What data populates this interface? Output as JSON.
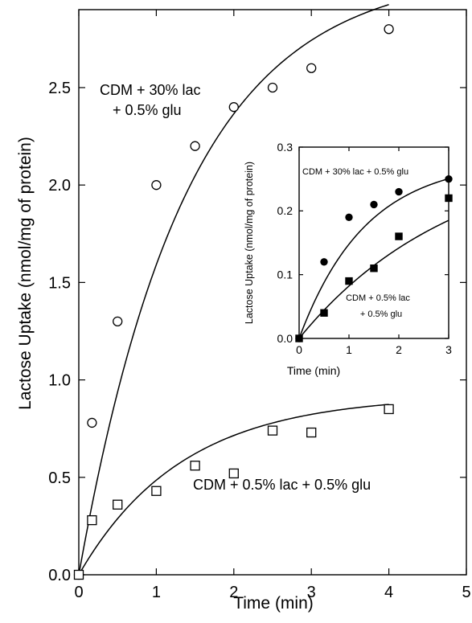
{
  "chart_data": [
    {
      "type": "scatter",
      "title": "",
      "xlabel": "Time (min)",
      "ylabel": "Lactose Uptake (nmol/mg of protein)",
      "xlim": [
        0,
        5
      ],
      "ylim": [
        0,
        2.9
      ],
      "xticks": [
        0,
        1,
        2,
        3,
        4,
        5
      ],
      "xtick_labels": [
        "0",
        "1",
        "2",
        "3",
        "4",
        "5"
      ],
      "yticks": [
        0,
        0.5,
        1.0,
        1.5,
        2.0,
        2.5
      ],
      "ytick_labels": [
        "0.0",
        "0.5",
        "1.0",
        "1.5",
        "2.0",
        "2.5"
      ],
      "grid": false,
      "series": [
        {
          "name": "CDM + 30% lac + 0.5% glu",
          "marker": "open-circle",
          "x": [
            0,
            0.17,
            0.5,
            1,
            1.5,
            2,
            2.5,
            3,
            4
          ],
          "y": [
            0,
            0.78,
            1.3,
            2.0,
            2.2,
            2.4,
            2.5,
            2.6,
            2.8
          ],
          "fit": {
            "ymax": 3.1,
            "k": 0.72,
            "xmax": 4
          }
        },
        {
          "name": "CDM + 0.5% lac + 0.5% glu",
          "marker": "open-square",
          "x": [
            0,
            0.17,
            0.5,
            1,
            1.5,
            2,
            2.5,
            3,
            4
          ],
          "y": [
            0,
            0.28,
            0.36,
            0.43,
            0.56,
            0.52,
            0.74,
            0.73,
            0.85
          ],
          "fit": {
            "ymax": 0.92,
            "k": 0.75,
            "xmax": 4
          }
        }
      ]
    },
    {
      "type": "scatter",
      "title": "",
      "xlabel": "Time (min)",
      "ylabel": "Lactose Uptake (nmol/mg of protein)",
      "xlim": [
        0,
        3
      ],
      "ylim": [
        0,
        0.3
      ],
      "xticks": [
        0,
        1,
        2,
        3
      ],
      "xtick_labels": [
        "0",
        "1",
        "2",
        "3"
      ],
      "yticks": [
        0,
        0.1,
        0.2,
        0.3
      ],
      "ytick_labels": [
        "0.0",
        "0.1",
        "0.2",
        "0.3"
      ],
      "grid": false,
      "series": [
        {
          "name": "CDM + 30% lac + 0.5% glu",
          "marker": "filled-circle",
          "x": [
            0,
            0.5,
            1,
            1.5,
            2,
            3
          ],
          "y": [
            0,
            0.12,
            0.19,
            0.21,
            0.23,
            0.25
          ],
          "fit": {
            "ymax": 0.28,
            "k": 0.75,
            "xmax": 3
          }
        },
        {
          "name": "CDM + 0.5% lac\n+ 0.5% glu",
          "marker": "filled-square",
          "x": [
            0,
            0.5,
            1,
            1.5,
            2,
            3
          ],
          "y": [
            0,
            0.04,
            0.09,
            0.11,
            0.16,
            0.22
          ],
          "fit": {
            "ymax": 0.3,
            "k": 0.32,
            "xmax": 3
          }
        }
      ]
    }
  ],
  "annotations": {
    "main_series1_line1": "CDM + 30% lac",
    "main_series1_line2": "+ 0.5% glu",
    "main_series2": "CDM + 0.5% lac + 0.5% glu",
    "inset_series1": "CDM + 30% lac + 0.5% glu",
    "inset_series2_line1": "CDM + 0.5% lac",
    "inset_series2_line2": "+ 0.5% glu"
  }
}
